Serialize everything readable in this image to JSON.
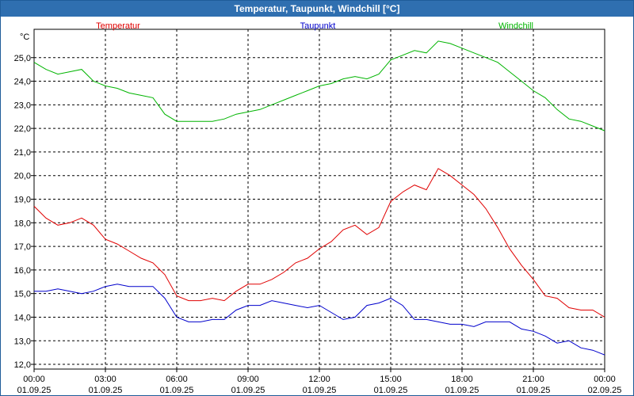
{
  "window": {
    "title": "Temperatur, Taupunkt, Windchill [°C]"
  },
  "chart_data": {
    "type": "line",
    "title": "Temperatur, Taupunkt, Windchill [°C]",
    "ylabel": "°C",
    "ylim": [
      11.8,
      26.2
    ],
    "y_ticks": [
      "12,0",
      "13,0",
      "14,0",
      "15,0",
      "16,0",
      "17,0",
      "18,0",
      "19,0",
      "20,0",
      "21,0",
      "22,0",
      "23,0",
      "24,0",
      "25,0"
    ],
    "y_tick_values": [
      12,
      13,
      14,
      15,
      16,
      17,
      18,
      19,
      20,
      21,
      22,
      23,
      24,
      25
    ],
    "x_ticks": [
      {
        "time": "00:00",
        "date": "01.09.25",
        "hour": 0
      },
      {
        "time": "03:00",
        "date": "01.09.25",
        "hour": 3
      },
      {
        "time": "06:00",
        "date": "01.09.25",
        "hour": 6
      },
      {
        "time": "09:00",
        "date": "01.09.25",
        "hour": 9
      },
      {
        "time": "12:00",
        "date": "01.09.25",
        "hour": 12
      },
      {
        "time": "15:00",
        "date": "01.09.25",
        "hour": 15
      },
      {
        "time": "18:00",
        "date": "01.09.25",
        "hour": 18
      },
      {
        "time": "21:00",
        "date": "01.09.25",
        "hour": 21
      },
      {
        "time": "00:00",
        "date": "02.09.25",
        "hour": 24
      }
    ],
    "grid": true,
    "legend_position": "top",
    "x_hours": [
      0,
      0.5,
      1,
      1.5,
      2,
      2.5,
      3,
      3.5,
      4,
      4.5,
      5,
      5.5,
      6,
      6.5,
      7,
      7.5,
      8,
      8.5,
      9,
      9.5,
      10,
      10.5,
      11,
      11.5,
      12,
      12.5,
      13,
      13.5,
      14,
      14.5,
      15,
      15.5,
      16,
      16.5,
      17,
      17.5,
      18,
      18.5,
      19,
      19.5,
      20,
      20.5,
      21,
      21.5,
      22,
      22.5,
      23,
      23.5,
      24
    ],
    "series": [
      {
        "name": "Temperatur",
        "color": "#e00000",
        "values": [
          18.7,
          18.2,
          17.9,
          18.0,
          18.2,
          17.9,
          17.3,
          17.1,
          16.8,
          16.5,
          16.3,
          15.8,
          14.9,
          14.7,
          14.7,
          14.8,
          14.7,
          15.1,
          15.4,
          15.4,
          15.6,
          15.9,
          16.3,
          16.5,
          16.9,
          17.2,
          17.7,
          17.9,
          17.5,
          17.8,
          18.9,
          19.3,
          19.6,
          19.4,
          20.3,
          20.0,
          19.6,
          19.2,
          18.6,
          17.8,
          16.9,
          16.2,
          15.6,
          14.9,
          14.8,
          14.4,
          14.3,
          14.3,
          14.0
        ]
      },
      {
        "name": "Taupunkt",
        "color": "#0000cc",
        "values": [
          15.1,
          15.1,
          15.2,
          15.1,
          15.0,
          15.1,
          15.3,
          15.4,
          15.3,
          15.3,
          15.3,
          14.8,
          14.0,
          13.8,
          13.8,
          13.9,
          13.9,
          14.3,
          14.5,
          14.5,
          14.7,
          14.6,
          14.5,
          14.4,
          14.5,
          14.2,
          13.9,
          14.0,
          14.5,
          14.6,
          14.8,
          14.5,
          13.9,
          13.9,
          13.8,
          13.7,
          13.7,
          13.6,
          13.8,
          13.8,
          13.8,
          13.5,
          13.4,
          13.2,
          12.9,
          13.0,
          12.7,
          12.6,
          12.4
        ]
      },
      {
        "name": "Windchill",
        "color": "#00b400",
        "values": [
          24.8,
          24.5,
          24.3,
          24.4,
          24.5,
          24.0,
          23.8,
          23.7,
          23.5,
          23.4,
          23.3,
          22.6,
          22.3,
          22.3,
          22.3,
          22.3,
          22.4,
          22.6,
          22.7,
          22.8,
          23.0,
          23.2,
          23.4,
          23.6,
          23.8,
          23.9,
          24.1,
          24.2,
          24.1,
          24.3,
          24.9,
          25.1,
          25.3,
          25.2,
          25.7,
          25.6,
          25.4,
          25.2,
          25.0,
          24.8,
          24.4,
          24.0,
          23.6,
          23.3,
          22.8,
          22.4,
          22.3,
          22.1,
          21.9
        ]
      }
    ]
  }
}
